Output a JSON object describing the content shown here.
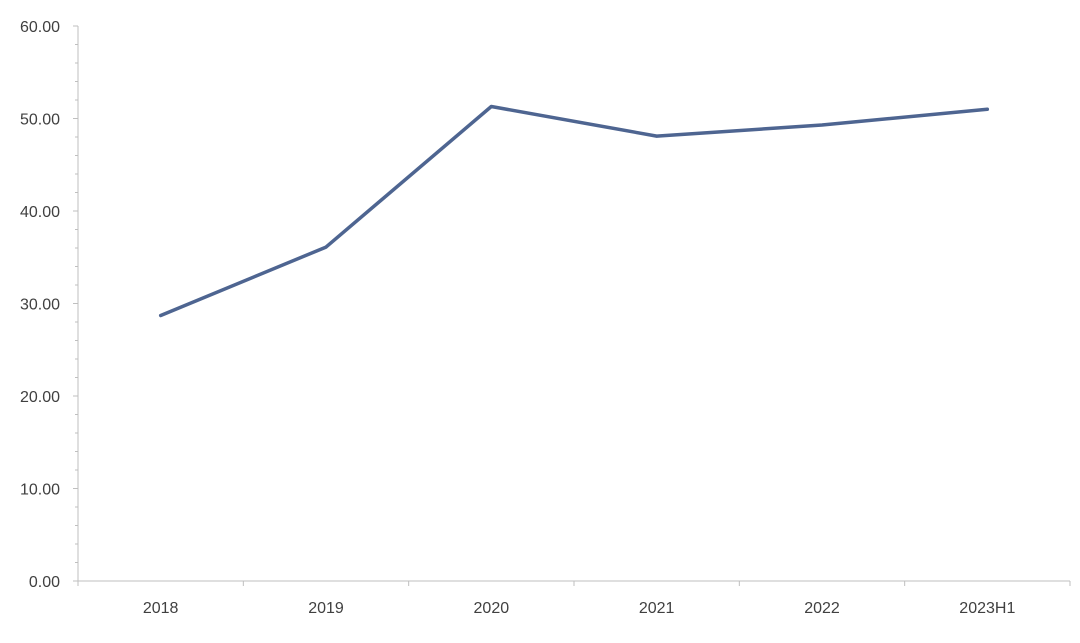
{
  "chart_data": {
    "type": "line",
    "title": "",
    "xlabel": "",
    "ylabel": "",
    "categories": [
      "2018",
      "2019",
      "2020",
      "2021",
      "2022",
      "2023H1"
    ],
    "series": [
      {
        "values": [
          28.7,
          36.1,
          51.3,
          48.1,
          49.3,
          51.0
        ],
        "color": "#4e6591"
      }
    ],
    "ylim": [
      0,
      60
    ],
    "yticks": [
      "0.00",
      "10.00",
      "20.00",
      "30.00",
      "40.00",
      "50.00",
      "60.00"
    ],
    "grid": false,
    "legend": "none",
    "colors": {
      "axis": "#bfbfbf",
      "text": "#404040"
    }
  }
}
